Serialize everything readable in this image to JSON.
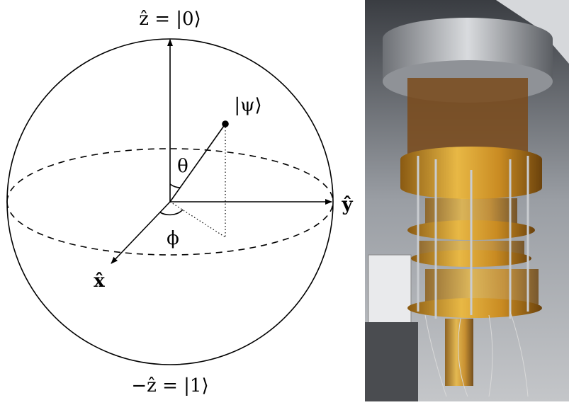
{
  "bloch_sphere": {
    "north_label": "ẑ = |0⟩",
    "south_label": "−ẑ = |1⟩",
    "state_label": "|ψ⟩",
    "theta_label": "θ",
    "phi_label": "ϕ",
    "x_axis_label": "x̂",
    "y_axis_label": "ŷ"
  }
}
